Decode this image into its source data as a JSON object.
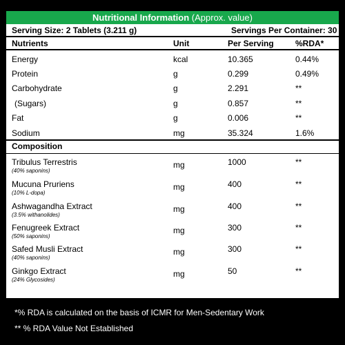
{
  "title": {
    "bold": "Nutritional Information",
    "normal": "(Approx. value)"
  },
  "serving": {
    "size": "Serving Size: 2 Tablets (3.211 g)",
    "per_container": "Servings Per Container: 30"
  },
  "headers": {
    "nutrients": "Nutrients",
    "unit": "Unit",
    "per_serving": "Per  Serving",
    "rda": "%RDA*"
  },
  "nutrients": [
    {
      "name": "Energy",
      "unit": "kcal",
      "value": "10.365",
      "rda": "0.44%"
    },
    {
      "name": "Protein",
      "unit": "g",
      "value": "0.299",
      "rda": "0.49%"
    },
    {
      "name": "Carbohydrate",
      "unit": "g",
      "value": "2.291",
      "rda": "**"
    },
    {
      "name": "(Sugars)",
      "unit": "g",
      "value": "0.857",
      "rda": "**"
    },
    {
      "name": "Fat",
      "unit": "g",
      "value": "0.006",
      "rda": "**"
    },
    {
      "name": "Sodium",
      "unit": "mg",
      "value": "35.324",
      "rda": "1.6%"
    }
  ],
  "composition_header": "Composition",
  "composition": [
    {
      "name": "Tribulus Terrestris",
      "sub": "(40% saponins)",
      "unit": "mg",
      "value": "1000",
      "rda": "**"
    },
    {
      "name": "Mucuna Pruriens",
      "sub": "(10% L-dopa)",
      "unit": "mg",
      "value": "400",
      "rda": "**"
    },
    {
      "name": "Ashwagandha Extract",
      "sub": "(3.5% withanolides)",
      "unit": "mg",
      "value": "400",
      "rda": "**"
    },
    {
      "name": "Fenugreek Extract",
      "sub": "(50% saponins)",
      "unit": "mg",
      "value": "300",
      "rda": "**"
    },
    {
      "name": "Safed Musli Extract",
      "sub": "(40% saponins)",
      "unit": "mg",
      "value": "300",
      "rda": "**"
    },
    {
      "name": "Ginkgo Extract",
      "sub": "(24% Glycosides)",
      "unit": "mg",
      "value": "50",
      "rda": "**"
    }
  ],
  "footnotes": [
    "*% RDA is calculated on the basis of ICMR for Men-Sedentary Work",
    "** % RDA Value Not Established"
  ],
  "colors": {
    "title_bg": "#18a84c",
    "background": "#000000",
    "panel": "#ffffff"
  }
}
